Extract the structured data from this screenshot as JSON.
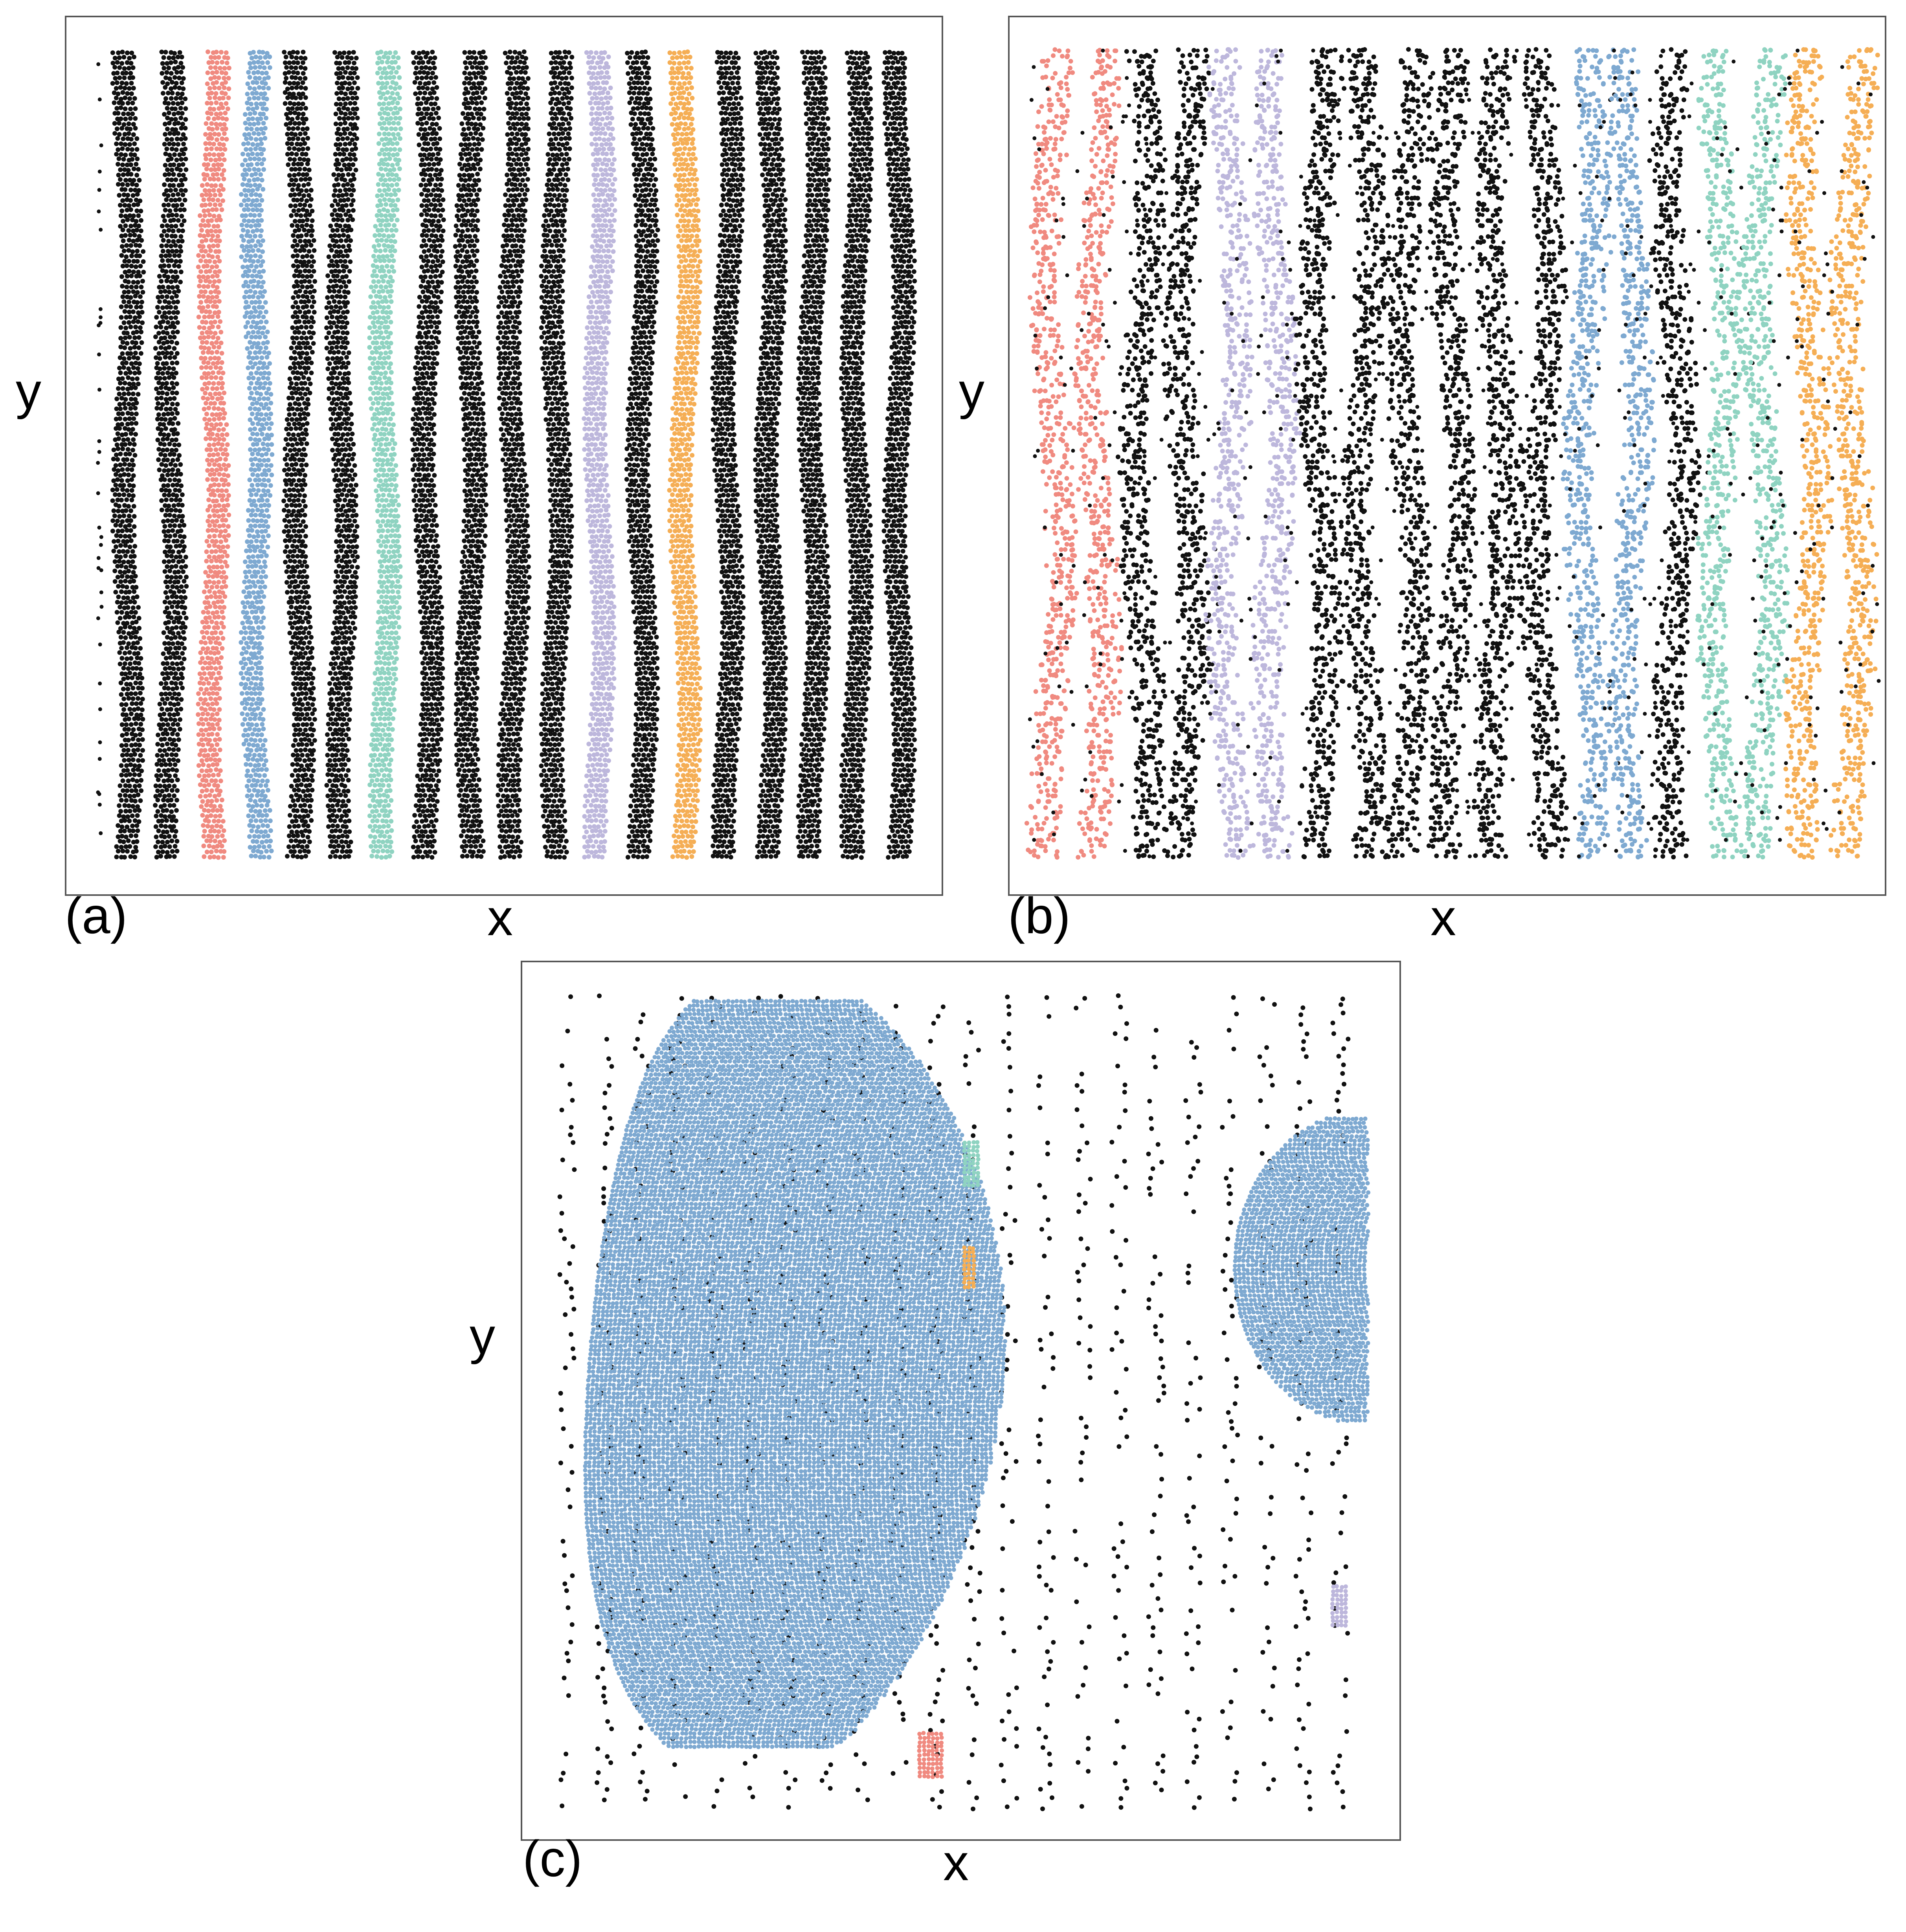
{
  "colors": {
    "background": "#ffffff",
    "frame": "#555555",
    "black": "#111111",
    "red": "#f08a80",
    "blue": "#7ea9d1",
    "teal": "#8fd3c1",
    "lavender": "#bdb7dc",
    "orange": "#f5ae55"
  },
  "chart_data": [
    {
      "type": "scatter",
      "panel_label": "(a)",
      "xlabel": "x",
      "ylabel": "y",
      "xticks": false,
      "yticks": false,
      "grid": false,
      "legend": "none",
      "description_series": [
        {
          "color": "black",
          "count": 14
        },
        {
          "color": "red",
          "count": 1
        },
        {
          "color": "blue",
          "count": 1
        },
        {
          "color": "teal",
          "count": 1
        },
        {
          "color": "lavender",
          "count": 1
        },
        {
          "color": "orange",
          "count": 1
        }
      ],
      "stripe_colors": [
        "black",
        "black",
        "red",
        "blue",
        "black",
        "black",
        "teal",
        "black",
        "black",
        "black",
        "black",
        "lavender",
        "black",
        "orange",
        "black",
        "black",
        "black",
        "black",
        "black"
      ]
    },
    {
      "type": "scatter",
      "panel_label": "(b)",
      "xlabel": "x",
      "ylabel": "y",
      "xticks": false,
      "yticks": false,
      "grid": false,
      "legend": "none",
      "stripe_colors": [
        "red",
        "red",
        "black",
        "black",
        "lavender",
        "lavender",
        "black",
        "black",
        "black",
        "black",
        "black",
        "black",
        "blue",
        "blue",
        "black",
        "teal",
        "teal",
        "orange",
        "orange"
      ]
    },
    {
      "type": "scatter",
      "panel_label": "(c)",
      "xlabel": "x",
      "ylabel": "y",
      "xticks": false,
      "yticks": false,
      "grid": false,
      "legend": "none",
      "clusters": [
        {
          "color": "blue",
          "shape": "large cluster, left"
        },
        {
          "color": "blue",
          "shape": "cluster, right edge"
        },
        {
          "color": "teal",
          "shape": "small cluster"
        },
        {
          "color": "orange",
          "shape": "small cluster"
        },
        {
          "color": "red",
          "shape": "small cluster, bottom"
        },
        {
          "color": "lavender",
          "shape": "small cluster, bottom right"
        },
        {
          "color": "black",
          "shape": "sparse vertical stripes"
        }
      ]
    }
  ]
}
